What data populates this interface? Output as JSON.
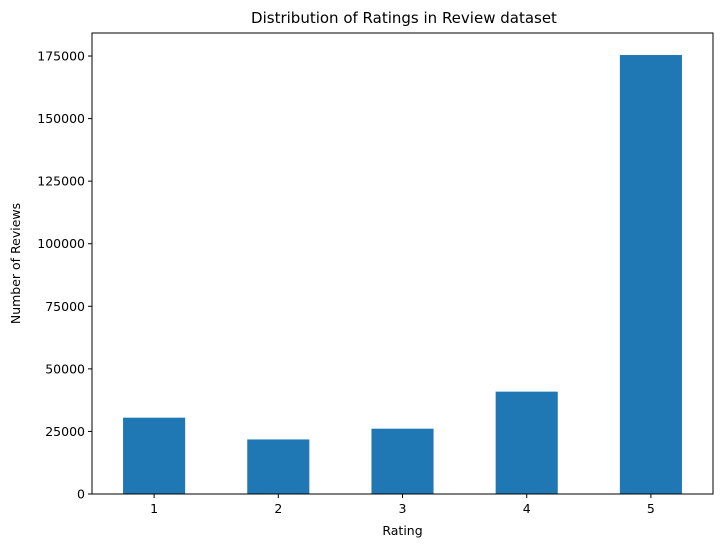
{
  "chart_data": {
    "type": "bar",
    "title": "Distribution of Ratings in Review dataset",
    "xlabel": "Rating",
    "ylabel": "Number of Reviews",
    "categories": [
      "1",
      "2",
      "3",
      "4",
      "5"
    ],
    "values": [
      30500,
      21800,
      26100,
      40900,
      175400
    ],
    "ylim": [
      0,
      184200
    ],
    "yticks": [
      0,
      25000,
      50000,
      75000,
      100000,
      125000,
      150000,
      175000
    ],
    "grid": false,
    "legend": "none",
    "bar_color": "#1f77b4"
  }
}
